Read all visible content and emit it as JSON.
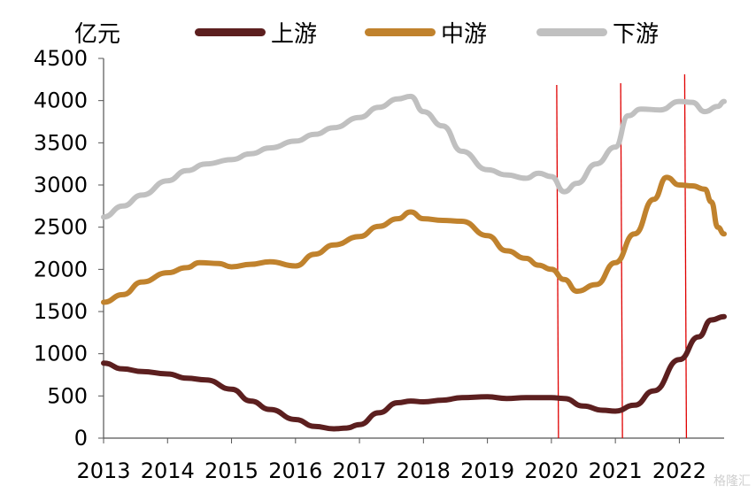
{
  "chart_data": {
    "type": "line",
    "unit": "亿元",
    "ylim": [
      0,
      4500
    ],
    "yticks": [
      0,
      500,
      1000,
      1500,
      2000,
      2500,
      3000,
      3500,
      4000,
      4500
    ],
    "xlim": [
      2013,
      2022.7
    ],
    "xticks": [
      "2013",
      "2014",
      "2015",
      "2016",
      "2017",
      "2018",
      "2019",
      "2020",
      "2021",
      "2022"
    ],
    "legend_position": "top",
    "grid": false,
    "series": [
      {
        "name": "上游",
        "color": "#5c1f1f",
        "x": [
          2013.0,
          2013.3,
          2013.6,
          2014.0,
          2014.3,
          2014.6,
          2015.0,
          2015.3,
          2015.6,
          2016.0,
          2016.3,
          2016.6,
          2016.8,
          2017.0,
          2017.3,
          2017.6,
          2017.8,
          2018.0,
          2018.3,
          2018.6,
          2019.0,
          2019.3,
          2019.6,
          2020.0,
          2020.2,
          2020.5,
          2020.8,
          2021.0,
          2021.3,
          2021.6,
          2022.0,
          2022.3,
          2022.5,
          2022.7
        ],
        "values": [
          890,
          820,
          790,
          760,
          710,
          690,
          580,
          440,
          340,
          220,
          140,
          110,
          120,
          160,
          300,
          420,
          440,
          430,
          450,
          480,
          490,
          470,
          480,
          480,
          470,
          380,
          330,
          320,
          390,
          560,
          930,
          1200,
          1400,
          1440
        ]
      },
      {
        "name": "中游",
        "color": "#c0822d",
        "x": [
          2013.0,
          2013.3,
          2013.6,
          2014.0,
          2014.3,
          2014.5,
          2014.8,
          2015.0,
          2015.3,
          2015.6,
          2016.0,
          2016.3,
          2016.6,
          2017.0,
          2017.3,
          2017.6,
          2017.8,
          2018.0,
          2018.3,
          2018.6,
          2019.0,
          2019.3,
          2019.6,
          2019.8,
          2020.0,
          2020.2,
          2020.4,
          2020.7,
          2021.0,
          2021.3,
          2021.6,
          2021.8,
          2022.0,
          2022.2,
          2022.4,
          2022.5,
          2022.6,
          2022.7
        ],
        "values": [
          1610,
          1700,
          1850,
          1960,
          2020,
          2080,
          2070,
          2030,
          2060,
          2090,
          2040,
          2180,
          2290,
          2390,
          2510,
          2600,
          2680,
          2600,
          2580,
          2570,
          2400,
          2220,
          2130,
          2050,
          2000,
          1880,
          1740,
          1820,
          2080,
          2420,
          2830,
          3090,
          3000,
          2990,
          2950,
          2800,
          2500,
          2420
        ]
      },
      {
        "name": "下游",
        "color": "#c0c0c0",
        "x": [
          2013.0,
          2013.3,
          2013.6,
          2014.0,
          2014.3,
          2014.6,
          2015.0,
          2015.3,
          2015.6,
          2016.0,
          2016.3,
          2016.6,
          2017.0,
          2017.3,
          2017.6,
          2017.8,
          2018.0,
          2018.3,
          2018.6,
          2019.0,
          2019.3,
          2019.6,
          2019.8,
          2020.0,
          2020.2,
          2020.4,
          2020.7,
          2021.0,
          2021.2,
          2021.4,
          2021.7,
          2022.0,
          2022.2,
          2022.4,
          2022.6,
          2022.7
        ],
        "values": [
          2620,
          2750,
          2880,
          3050,
          3170,
          3250,
          3300,
          3370,
          3440,
          3520,
          3600,
          3680,
          3800,
          3920,
          4020,
          4050,
          3870,
          3700,
          3400,
          3180,
          3120,
          3080,
          3140,
          3100,
          2920,
          3020,
          3250,
          3450,
          3820,
          3900,
          3890,
          3990,
          3980,
          3870,
          3930,
          3990
        ]
      }
    ],
    "annotations": {
      "vertical_lines_x": [
        2020.0,
        2021.0,
        2022.0
      ],
      "vertical_line_color": "#e00000"
    }
  },
  "watermark": "格隆汇"
}
